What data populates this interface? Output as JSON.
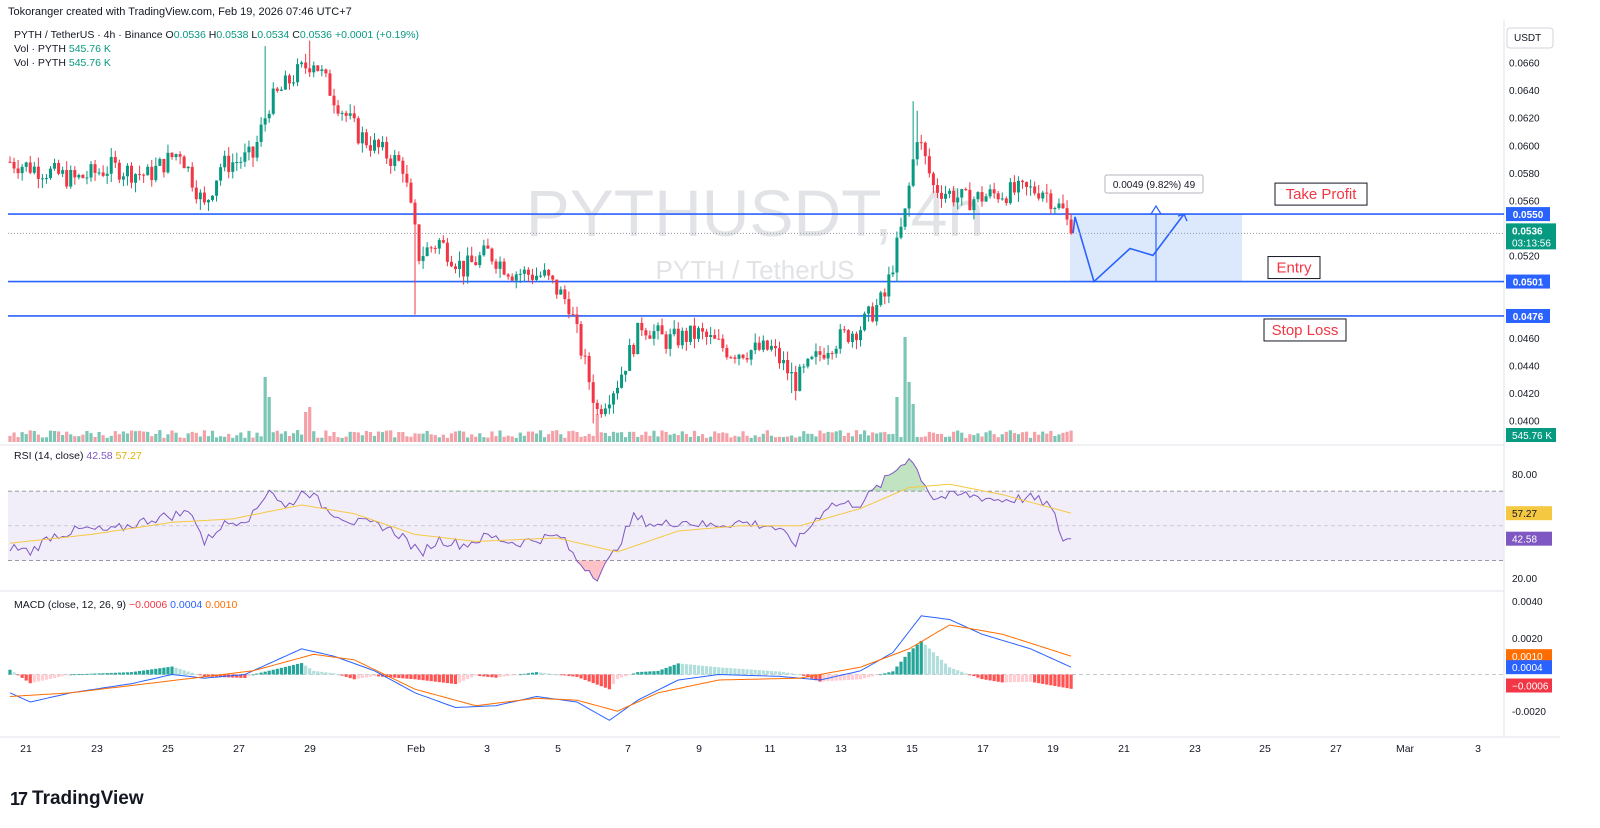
{
  "header": {
    "credit": "Tokoranger created with TradingView.com, Feb 19, 2026 07:46 UTC+7",
    "symbol_line": "PYTH / TetherUS · 4h · Binance",
    "o_label": "O",
    "o": "0.0536",
    "h_label": "H",
    "h": "0.0538",
    "l_label": "L",
    "l": "0.0534",
    "c_label": "C",
    "c": "0.0536",
    "change": "+0.0001 (+0.19%)",
    "vol_label": "Vol · PYTH",
    "vol_value": "545.76 K"
  },
  "watermark": {
    "title": "PYTHUSDT, 4h",
    "subtitle": "PYTH / TetherUS"
  },
  "brand": {
    "logo": "17",
    "name": "TradingView"
  },
  "colors": {
    "up": "#089981",
    "down": "#f23645",
    "level": "#2962ff",
    "zone": "#d6e4fc",
    "rsi": "#7e57c2",
    "rsi_ma": "#f5c842",
    "macd": "#2962ff",
    "signal": "#ff6d00"
  },
  "chart_data": [
    {
      "type": "candlestick",
      "title": "PYTH / TetherUS · 4h · Binance",
      "currency_label": "USDT",
      "ylim": [
        0.0383,
        0.0675
      ],
      "price_ticks": [
        "0.0660",
        "0.0640",
        "0.0620",
        "0.0600",
        "0.0580",
        "0.0560",
        "0.0540",
        "0.0520",
        "0.0500",
        "0.0480",
        "0.0460",
        "0.0440",
        "0.0420",
        "0.0400"
      ],
      "x_tick_labels": [
        "21",
        "23",
        "25",
        "27",
        "29",
        "Feb",
        "3",
        "5",
        "7",
        "9",
        "11",
        "13",
        "15",
        "17",
        "19",
        "21",
        "23",
        "25",
        "27",
        "Mar",
        "3"
      ],
      "last_price": "0.0536",
      "countdown": "03:13:56",
      "volume_label": "545.76 K",
      "levels": [
        {
          "name": "Take Profit",
          "price": "0.0550"
        },
        {
          "name": "Entry",
          "price": "0.0501"
        },
        {
          "name": "Stop Loss",
          "price": "0.0476"
        }
      ],
      "measure_label": "0.0049 (9.82%) 49",
      "anchors": [
        {
          "c": 0,
          "p": 0.0588
        },
        {
          "c": 8,
          "p": 0.0582
        },
        {
          "c": 16,
          "p": 0.0575
        },
        {
          "c": 25,
          "p": 0.0584
        },
        {
          "c": 34,
          "p": 0.0578
        },
        {
          "c": 42,
          "p": 0.0596
        },
        {
          "c": 48,
          "p": 0.0555
        },
        {
          "c": 52,
          "p": 0.0585
        },
        {
          "c": 60,
          "p": 0.0592
        },
        {
          "c": 64,
          "p": 0.063
        },
        {
          "c": 70,
          "p": 0.065
        },
        {
          "c": 75,
          "p": 0.0662
        },
        {
          "c": 80,
          "p": 0.0635
        },
        {
          "c": 86,
          "p": 0.0608
        },
        {
          "c": 92,
          "p": 0.0595
        },
        {
          "c": 97,
          "p": 0.0585
        },
        {
          "c": 101,
          "p": 0.052
        },
        {
          "c": 106,
          "p": 0.053
        },
        {
          "c": 112,
          "p": 0.051
        },
        {
          "c": 118,
          "p": 0.0522
        },
        {
          "c": 124,
          "p": 0.0508
        },
        {
          "c": 132,
          "p": 0.0505
        },
        {
          "c": 138,
          "p": 0.0485
        },
        {
          "c": 145,
          "p": 0.0407
        },
        {
          "c": 150,
          "p": 0.0428
        },
        {
          "c": 156,
          "p": 0.047
        },
        {
          "c": 162,
          "p": 0.0458
        },
        {
          "c": 170,
          "p": 0.0463
        },
        {
          "c": 178,
          "p": 0.045
        },
        {
          "c": 188,
          "p": 0.0452
        },
        {
          "c": 194,
          "p": 0.0428
        },
        {
          "c": 202,
          "p": 0.0455
        },
        {
          "c": 210,
          "p": 0.0468
        },
        {
          "c": 216,
          "p": 0.049
        },
        {
          "c": 221,
          "p": 0.055
        },
        {
          "c": 224,
          "p": 0.0608
        },
        {
          "c": 228,
          "p": 0.057
        },
        {
          "c": 236,
          "p": 0.056
        },
        {
          "c": 244,
          "p": 0.0565
        },
        {
          "c": 255,
          "p": 0.0568
        },
        {
          "c": 260,
          "p": 0.0552
        },
        {
          "c": 262,
          "p": 0.0536
        }
      ]
    },
    {
      "type": "line",
      "title": "RSI (14, close)",
      "rsi_value": "42.58",
      "ma_value": "57.27",
      "ylim": [
        13,
        96
      ],
      "y_ticks": [
        "80.00",
        "20.00"
      ],
      "band": [
        30,
        70
      ],
      "points": [
        {
          "c": 0,
          "v": 38
        },
        {
          "c": 5,
          "v": 35
        },
        {
          "c": 10,
          "v": 44
        },
        {
          "c": 18,
          "v": 48
        },
        {
          "c": 25,
          "v": 47
        },
        {
          "c": 35,
          "v": 54
        },
        {
          "c": 45,
          "v": 58
        },
        {
          "c": 48,
          "v": 40
        },
        {
          "c": 52,
          "v": 50
        },
        {
          "c": 60,
          "v": 56
        },
        {
          "c": 64,
          "v": 72
        },
        {
          "c": 68,
          "v": 60
        },
        {
          "c": 73,
          "v": 71
        },
        {
          "c": 78,
          "v": 60
        },
        {
          "c": 85,
          "v": 52
        },
        {
          "c": 92,
          "v": 50
        },
        {
          "c": 97,
          "v": 44
        },
        {
          "c": 101,
          "v": 34
        },
        {
          "c": 106,
          "v": 42
        },
        {
          "c": 112,
          "v": 39
        },
        {
          "c": 118,
          "v": 44
        },
        {
          "c": 125,
          "v": 40
        },
        {
          "c": 132,
          "v": 43
        },
        {
          "c": 136,
          "v": 44
        },
        {
          "c": 140,
          "v": 30
        },
        {
          "c": 145,
          "v": 21
        },
        {
          "c": 148,
          "v": 30
        },
        {
          "c": 154,
          "v": 55
        },
        {
          "c": 160,
          "v": 50
        },
        {
          "c": 166,
          "v": 53
        },
        {
          "c": 172,
          "v": 50
        },
        {
          "c": 180,
          "v": 52
        },
        {
          "c": 188,
          "v": 50
        },
        {
          "c": 194,
          "v": 40
        },
        {
          "c": 202,
          "v": 62
        },
        {
          "c": 210,
          "v": 63
        },
        {
          "c": 216,
          "v": 76
        },
        {
          "c": 222,
          "v": 90
        },
        {
          "c": 225,
          "v": 78
        },
        {
          "c": 228,
          "v": 66
        },
        {
          "c": 236,
          "v": 68
        },
        {
          "c": 244,
          "v": 65
        },
        {
          "c": 252,
          "v": 66
        },
        {
          "c": 256,
          "v": 63
        },
        {
          "c": 258,
          "v": 55
        },
        {
          "c": 260,
          "v": 42
        },
        {
          "c": 262,
          "v": 42.58
        }
      ],
      "ma_points": [
        {
          "c": 0,
          "v": 40
        },
        {
          "c": 20,
          "v": 45
        },
        {
          "c": 40,
          "v": 52
        },
        {
          "c": 55,
          "v": 54
        },
        {
          "c": 72,
          "v": 62
        },
        {
          "c": 85,
          "v": 57
        },
        {
          "c": 100,
          "v": 45
        },
        {
          "c": 115,
          "v": 41
        },
        {
          "c": 135,
          "v": 43
        },
        {
          "c": 150,
          "v": 35
        },
        {
          "c": 165,
          "v": 47
        },
        {
          "c": 180,
          "v": 50
        },
        {
          "c": 195,
          "v": 50
        },
        {
          "c": 210,
          "v": 60
        },
        {
          "c": 222,
          "v": 72
        },
        {
          "c": 232,
          "v": 74
        },
        {
          "c": 245,
          "v": 68
        },
        {
          "c": 262,
          "v": 57.27
        }
      ]
    },
    {
      "type": "line",
      "title": "MACD (close, 12, 26, 9)",
      "hist_value": "−0.0006",
      "macd_value": "0.0004",
      "signal_value": "0.0010",
      "ylim": [
        -0.0033,
        0.0045
      ],
      "y_ticks": [
        "0.0040",
        "0.0020",
        "-0.0020"
      ],
      "macd_points": [
        {
          "c": 0,
          "v": -0.001
        },
        {
          "c": 5,
          "v": -0.0015
        },
        {
          "c": 15,
          "v": -0.001
        },
        {
          "c": 30,
          "v": -0.0005
        },
        {
          "c": 40,
          "v": 0.0
        },
        {
          "c": 48,
          "v": -0.0002
        },
        {
          "c": 58,
          "v": 0.0
        },
        {
          "c": 66,
          "v": 0.0008
        },
        {
          "c": 72,
          "v": 0.0014
        },
        {
          "c": 80,
          "v": 0.001
        },
        {
          "c": 90,
          "v": 0.0002
        },
        {
          "c": 100,
          "v": -0.001
        },
        {
          "c": 110,
          "v": -0.0018
        },
        {
          "c": 120,
          "v": -0.0017
        },
        {
          "c": 130,
          "v": -0.0012
        },
        {
          "c": 140,
          "v": -0.0015
        },
        {
          "c": 148,
          "v": -0.0025
        },
        {
          "c": 155,
          "v": -0.0014
        },
        {
          "c": 165,
          "v": -0.0003
        },
        {
          "c": 175,
          "v": 0.0
        },
        {
          "c": 190,
          "v": -0.0001
        },
        {
          "c": 200,
          "v": -0.0003
        },
        {
          "c": 210,
          "v": 0.0002
        },
        {
          "c": 218,
          "v": 0.0012
        },
        {
          "c": 225,
          "v": 0.0032
        },
        {
          "c": 232,
          "v": 0.003
        },
        {
          "c": 240,
          "v": 0.0022
        },
        {
          "c": 252,
          "v": 0.0014
        },
        {
          "c": 262,
          "v": 0.0004
        }
      ],
      "signal_points": [
        {
          "c": 0,
          "v": -0.0012
        },
        {
          "c": 15,
          "v": -0.001
        },
        {
          "c": 30,
          "v": -0.0006
        },
        {
          "c": 45,
          "v": -0.0002
        },
        {
          "c": 60,
          "v": 0.0002
        },
        {
          "c": 75,
          "v": 0.0011
        },
        {
          "c": 85,
          "v": 0.0008
        },
        {
          "c": 100,
          "v": -0.0008
        },
        {
          "c": 115,
          "v": -0.0017
        },
        {
          "c": 130,
          "v": -0.0013
        },
        {
          "c": 140,
          "v": -0.0014
        },
        {
          "c": 150,
          "v": -0.002
        },
        {
          "c": 160,
          "v": -0.001
        },
        {
          "c": 175,
          "v": -0.0003
        },
        {
          "c": 195,
          "v": -0.0002
        },
        {
          "c": 210,
          "v": 0.0004
        },
        {
          "c": 222,
          "v": 0.0014
        },
        {
          "c": 232,
          "v": 0.0027
        },
        {
          "c": 245,
          "v": 0.0022
        },
        {
          "c": 262,
          "v": 0.001
        }
      ]
    }
  ]
}
